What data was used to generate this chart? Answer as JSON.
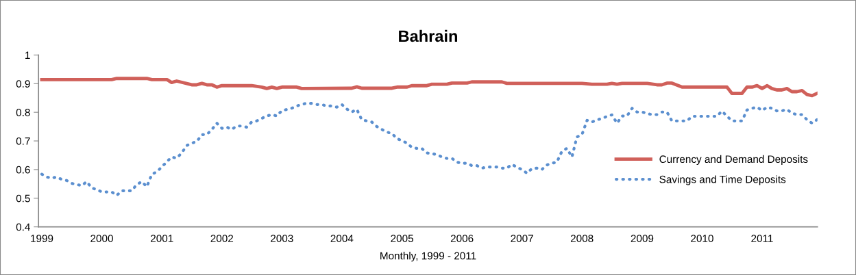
{
  "chart_data": {
    "type": "line",
    "title": "Bahrain",
    "xlabel": "Monthly, 1999 - 2011",
    "x": [
      "1999-01",
      "1999-02",
      "1999-03",
      "1999-04",
      "1999-05",
      "1999-06",
      "1999-07",
      "1999-08",
      "1999-09",
      "1999-10",
      "1999-11",
      "1999-12",
      "2000-01",
      "2000-02",
      "2000-03",
      "2000-04",
      "2000-05",
      "2000-06",
      "2000-07",
      "2000-08",
      "2000-09",
      "2000-10",
      "2000-11",
      "2000-12",
      "2001-01",
      "2001-02",
      "2001-03",
      "2001-04",
      "2001-05",
      "2001-06",
      "2001-07",
      "2001-08",
      "2001-09",
      "2001-10",
      "2001-11",
      "2001-12",
      "2002-01",
      "2002-02",
      "2002-03",
      "2002-04",
      "2002-05",
      "2002-06",
      "2002-07",
      "2002-08",
      "2002-09",
      "2002-10",
      "2002-11",
      "2002-12",
      "2003-01",
      "2003-02",
      "2003-03",
      "2003-04",
      "2003-05",
      "2003-06",
      "2003-07",
      "2003-08",
      "2003-09",
      "2003-10",
      "2003-11",
      "2003-12",
      "2004-01",
      "2004-02",
      "2004-03",
      "2004-04",
      "2004-05",
      "2004-06",
      "2004-07",
      "2004-08",
      "2004-09",
      "2004-10",
      "2004-11",
      "2004-12",
      "2005-01",
      "2005-02",
      "2005-03",
      "2005-04",
      "2005-05",
      "2005-06",
      "2005-07",
      "2005-08",
      "2005-09",
      "2005-10",
      "2005-11",
      "2005-12",
      "2006-01",
      "2006-02",
      "2006-03",
      "2006-04",
      "2006-05",
      "2006-06",
      "2006-07",
      "2006-08",
      "2006-09",
      "2006-10",
      "2006-11",
      "2006-12",
      "2007-01",
      "2007-02",
      "2007-03",
      "2007-04",
      "2007-05",
      "2007-06",
      "2007-07",
      "2007-08",
      "2007-09",
      "2007-10",
      "2007-11",
      "2007-12",
      "2008-01",
      "2008-02",
      "2008-03",
      "2008-04",
      "2008-05",
      "2008-06",
      "2008-07",
      "2008-08",
      "2008-09",
      "2008-10",
      "2008-11",
      "2008-12",
      "2009-01",
      "2009-02",
      "2009-03",
      "2009-04",
      "2009-05",
      "2009-06",
      "2009-07",
      "2009-08",
      "2009-09",
      "2009-10",
      "2009-11",
      "2009-12",
      "2010-01",
      "2010-02",
      "2010-03",
      "2010-04",
      "2010-05",
      "2010-06",
      "2010-07",
      "2010-08",
      "2010-09",
      "2010-10",
      "2010-11",
      "2010-12",
      "2011-01",
      "2011-02",
      "2011-03",
      "2011-04",
      "2011-05",
      "2011-06",
      "2011-07",
      "2011-08",
      "2011-09",
      "2011-10",
      "2011-11",
      "2011-12"
    ],
    "series": [
      {
        "name": "Currency and Demand Deposits",
        "color": "#d0605a",
        "line_style": "solid",
        "x": [
          "1999-01",
          "2000-03",
          "2000-04",
          "2000-10",
          "2000-11",
          "2001-02",
          "2001-03",
          "2001-04",
          "2001-07",
          "2001-08",
          "2001-09",
          "2001-10",
          "2001-11",
          "2001-12",
          "2002-01",
          "2002-07",
          "2002-09",
          "2002-10",
          "2002-11",
          "2002-12",
          "2003-01",
          "2003-04",
          "2003-05",
          "2004-03",
          "2004-04",
          "2004-05",
          "2004-11",
          "2004-12",
          "2005-02",
          "2005-03",
          "2005-06",
          "2005-07",
          "2005-10",
          "2005-11",
          "2006-02",
          "2006-03",
          "2006-09",
          "2006-10",
          "2008-01",
          "2008-03",
          "2008-06",
          "2008-07",
          "2008-08",
          "2008-09",
          "2009-02",
          "2009-04",
          "2009-05",
          "2009-06",
          "2009-07",
          "2009-09",
          "2010-06",
          "2010-07",
          "2010-09",
          "2010-10",
          "2010-11",
          "2010-12",
          "2011-01",
          "2011-02",
          "2011-03",
          "2011-04",
          "2011-05",
          "2011-06",
          "2011-07",
          "2011-08",
          "2011-09",
          "2011-10",
          "2011-11",
          "2011-12"
        ],
        "values": [
          0.914,
          0.914,
          0.918,
          0.918,
          0.914,
          0.914,
          0.904,
          0.909,
          0.896,
          0.896,
          0.901,
          0.896,
          0.896,
          0.888,
          0.893,
          0.893,
          0.888,
          0.883,
          0.888,
          0.883,
          0.888,
          0.888,
          0.883,
          0.884,
          0.889,
          0.884,
          0.884,
          0.888,
          0.888,
          0.893,
          0.893,
          0.898,
          0.898,
          0.902,
          0.902,
          0.906,
          0.906,
          0.901,
          0.901,
          0.898,
          0.898,
          0.901,
          0.898,
          0.901,
          0.901,
          0.896,
          0.896,
          0.902,
          0.902,
          0.888,
          0.888,
          0.866,
          0.866,
          0.888,
          0.888,
          0.893,
          0.883,
          0.893,
          0.883,
          0.878,
          0.878,
          0.883,
          0.872,
          0.872,
          0.876,
          0.862,
          0.858,
          0.866
        ]
      },
      {
        "name": "Savings and Time Deposits",
        "color": "#5b8fcf",
        "line_style": "dotted",
        "values": [
          0.584,
          0.574,
          0.57,
          0.574,
          0.566,
          0.562,
          0.552,
          0.548,
          0.544,
          0.558,
          0.536,
          0.53,
          0.522,
          0.522,
          0.522,
          0.51,
          0.526,
          0.526,
          0.526,
          0.548,
          0.558,
          0.54,
          0.584,
          0.592,
          0.61,
          0.628,
          0.644,
          0.64,
          0.658,
          0.684,
          0.692,
          0.698,
          0.722,
          0.722,
          0.74,
          0.762,
          0.744,
          0.748,
          0.74,
          0.752,
          0.752,
          0.748,
          0.766,
          0.77,
          0.779,
          0.787,
          0.792,
          0.787,
          0.806,
          0.81,
          0.814,
          0.822,
          0.827,
          0.832,
          0.831,
          0.827,
          0.827,
          0.822,
          0.822,
          0.818,
          0.827,
          0.811,
          0.801,
          0.81,
          0.774,
          0.77,
          0.766,
          0.75,
          0.74,
          0.731,
          0.726,
          0.708,
          0.701,
          0.692,
          0.678,
          0.674,
          0.674,
          0.658,
          0.656,
          0.652,
          0.644,
          0.639,
          0.639,
          0.626,
          0.622,
          0.622,
          0.614,
          0.614,
          0.605,
          0.609,
          0.609,
          0.609,
          0.605,
          0.605,
          0.618,
          0.608,
          0.6,
          0.587,
          0.603,
          0.605,
          0.6,
          0.616,
          0.622,
          0.626,
          0.664,
          0.674,
          0.644,
          0.714,
          0.722,
          0.772,
          0.766,
          0.774,
          0.778,
          0.786,
          0.791,
          0.762,
          0.787,
          0.787,
          0.814,
          0.801,
          0.801,
          0.796,
          0.792,
          0.792,
          0.801,
          0.801,
          0.77,
          0.77,
          0.77,
          0.77,
          0.786,
          0.786,
          0.786,
          0.786,
          0.786,
          0.786,
          0.804,
          0.787,
          0.77,
          0.77,
          0.77,
          0.808,
          0.814,
          0.818,
          0.806,
          0.818,
          0.814,
          0.805,
          0.805,
          0.81,
          0.797,
          0.792,
          0.792,
          0.774,
          0.762,
          0.774
        ]
      }
    ],
    "xlim": [
      "1998-12-12",
      "2011-12-04"
    ],
    "xticks": [
      {
        "value": "1999-01",
        "label": "1999"
      },
      {
        "value": "2000-01",
        "label": "2000"
      },
      {
        "value": "2001-01",
        "label": "2001"
      },
      {
        "value": "2002-01",
        "label": "2002"
      },
      {
        "value": "2003-01",
        "label": "2003"
      },
      {
        "value": "2004-01",
        "label": "2004"
      },
      {
        "value": "2005-01",
        "label": "2005"
      },
      {
        "value": "2006-01",
        "label": "2006"
      },
      {
        "value": "2007-01",
        "label": "2007"
      },
      {
        "value": "2008-01",
        "label": "2008"
      },
      {
        "value": "2009-01",
        "label": "2009"
      },
      {
        "value": "2010-01",
        "label": "2010"
      },
      {
        "value": "2011-01",
        "label": "2011"
      }
    ],
    "ylim": [
      0.4,
      1
    ],
    "yticks": [
      0.4,
      0.5,
      0.6,
      0.7,
      0.8,
      0.9,
      1
    ],
    "grid": false,
    "legend": "right",
    "marker": "none"
  }
}
